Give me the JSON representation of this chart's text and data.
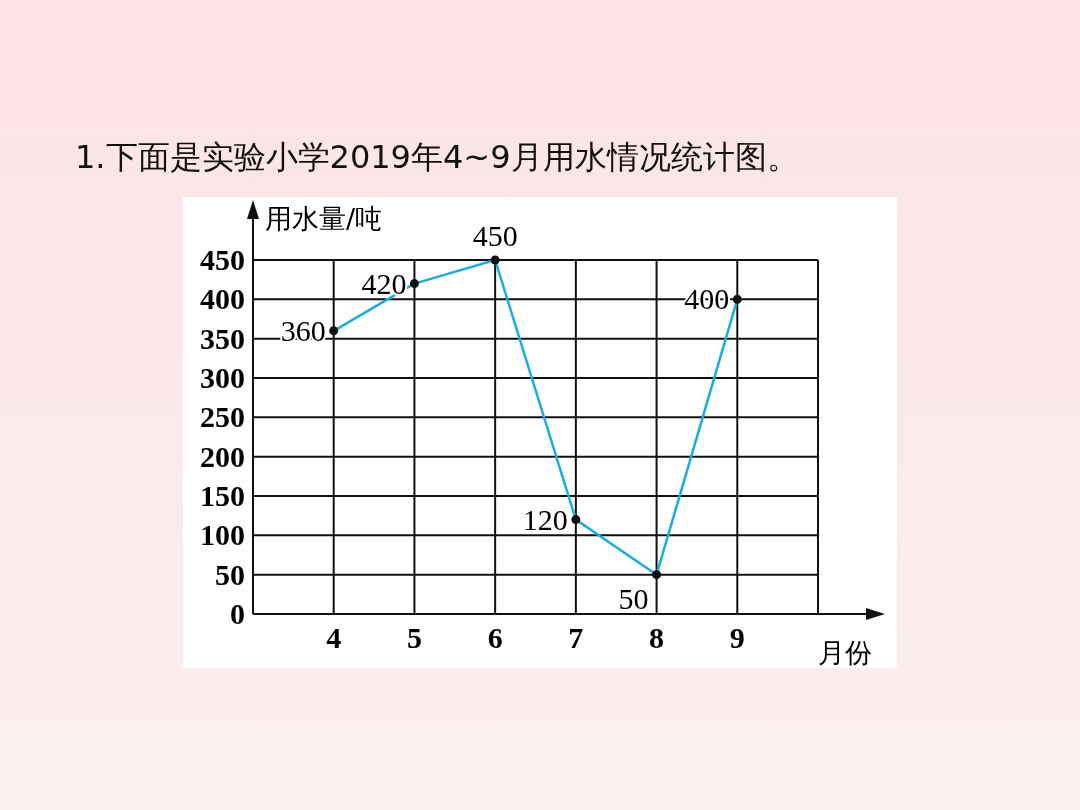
{
  "chart_data": {
    "type": "line",
    "title": "1.下面是实验小学2019年4~9月用水情况统计图。",
    "ylabel": "用水量/吨",
    "xlabel": "月份",
    "x": [
      4,
      5,
      6,
      7,
      8,
      9
    ],
    "series": [
      {
        "color": "#1aaee0",
        "values": [
          360,
          420,
          450,
          120,
          50,
          400
        ]
      }
    ],
    "xlim": [
      3,
      10
    ],
    "xticks": [
      4,
      5,
      6,
      7,
      8,
      9
    ],
    "ylim": [
      0,
      450
    ],
    "yticks": [
      0,
      50,
      100,
      150,
      200,
      250,
      300,
      350,
      400,
      450
    ],
    "grid": true,
    "marker": "circle",
    "data_labels": true
  }
}
